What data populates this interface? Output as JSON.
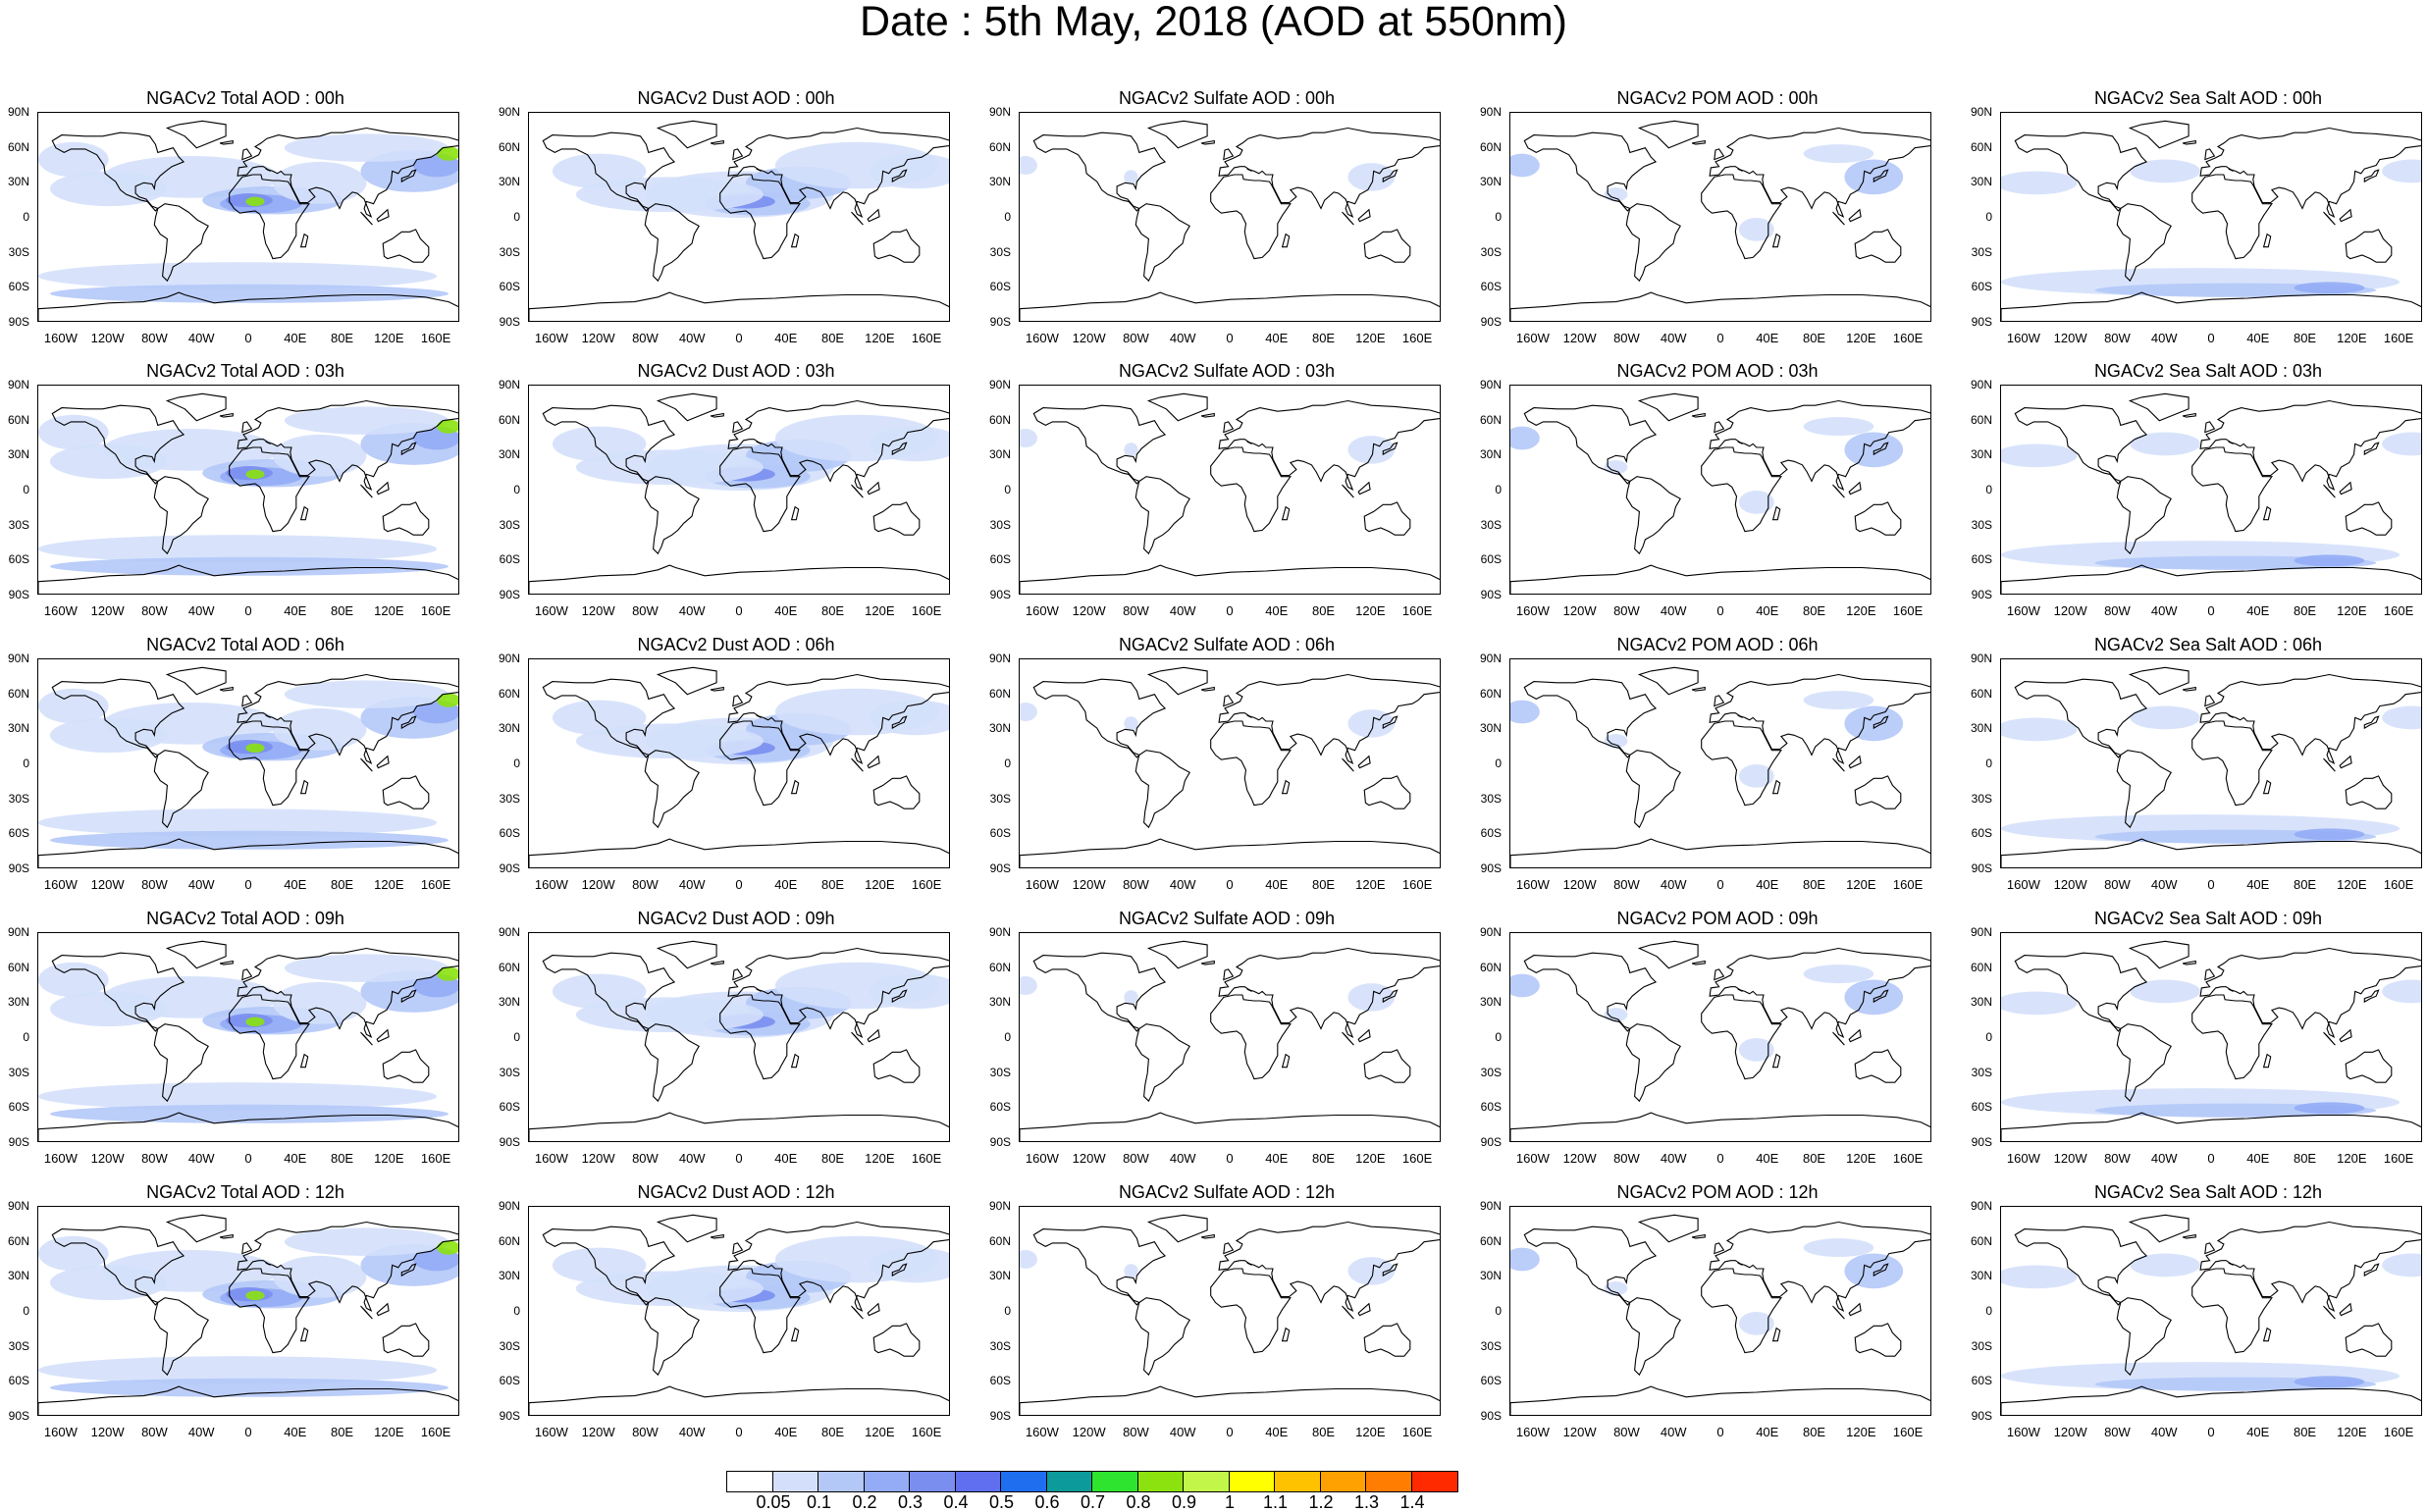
{
  "title": "Date : 5th May, 2018 (AOD at 550nm)",
  "y_ticks": [
    "90N",
    "60N",
    "30N",
    "0",
    "30S",
    "60S",
    "90S"
  ],
  "x_ticks": [
    "160W",
    "120W",
    "80W",
    "40W",
    "0",
    "40E",
    "80E",
    "120E",
    "160E"
  ],
  "panels": [
    [
      "NGACv2 Total AOD : 00h",
      "NGACv2 Dust AOD : 00h",
      "NGACv2 Sulfate AOD : 00h",
      "NGACv2 POM AOD : 00h",
      "NGACv2 Sea Salt AOD : 00h"
    ],
    [
      "NGACv2 Total AOD : 03h",
      "NGACv2 Dust AOD : 03h",
      "NGACv2 Sulfate AOD : 03h",
      "NGACv2 POM AOD : 03h",
      "NGACv2 Sea Salt AOD : 03h"
    ],
    [
      "NGACv2 Total AOD : 06h",
      "NGACv2 Dust AOD : 06h",
      "NGACv2 Sulfate AOD : 06h",
      "NGACv2 POM AOD : 06h",
      "NGACv2 Sea Salt AOD : 06h"
    ],
    [
      "NGACv2 Total AOD : 09h",
      "NGACv2 Dust AOD : 09h",
      "NGACv2 Sulfate AOD : 09h",
      "NGACv2 POM AOD : 09h",
      "NGACv2 Sea Salt  AOD : 09h"
    ],
    [
      "NGACv2 Total AOD : 12h",
      "NGACv2 Dust AOD : 12h",
      "NGACv2 Sulfate AOD : 12h",
      "NGACv2 POM  AOD : 12h",
      "NGACv2 Sea Salt  AOD : 12h"
    ]
  ],
  "colorbar": {
    "labels": [
      "0.05",
      "0.1",
      "0.2",
      "0.3",
      "0.4",
      "0.5",
      "0.6",
      "0.7",
      "0.8",
      "0.9",
      "1",
      "1.1",
      "1.2",
      "1.3",
      "1.4"
    ],
    "colors": [
      "#ffffff",
      "#d4e0fb",
      "#b4c8f8",
      "#93acf5",
      "#7a8ef0",
      "#5f6ff0",
      "#1f6ef0",
      "#0d9a9a",
      "#2fe42f",
      "#8be20e",
      "#c2f74a",
      "#ffff00",
      "#ffc200",
      "#ffa100",
      "#ff7d00",
      "#ff2a00"
    ]
  }
}
